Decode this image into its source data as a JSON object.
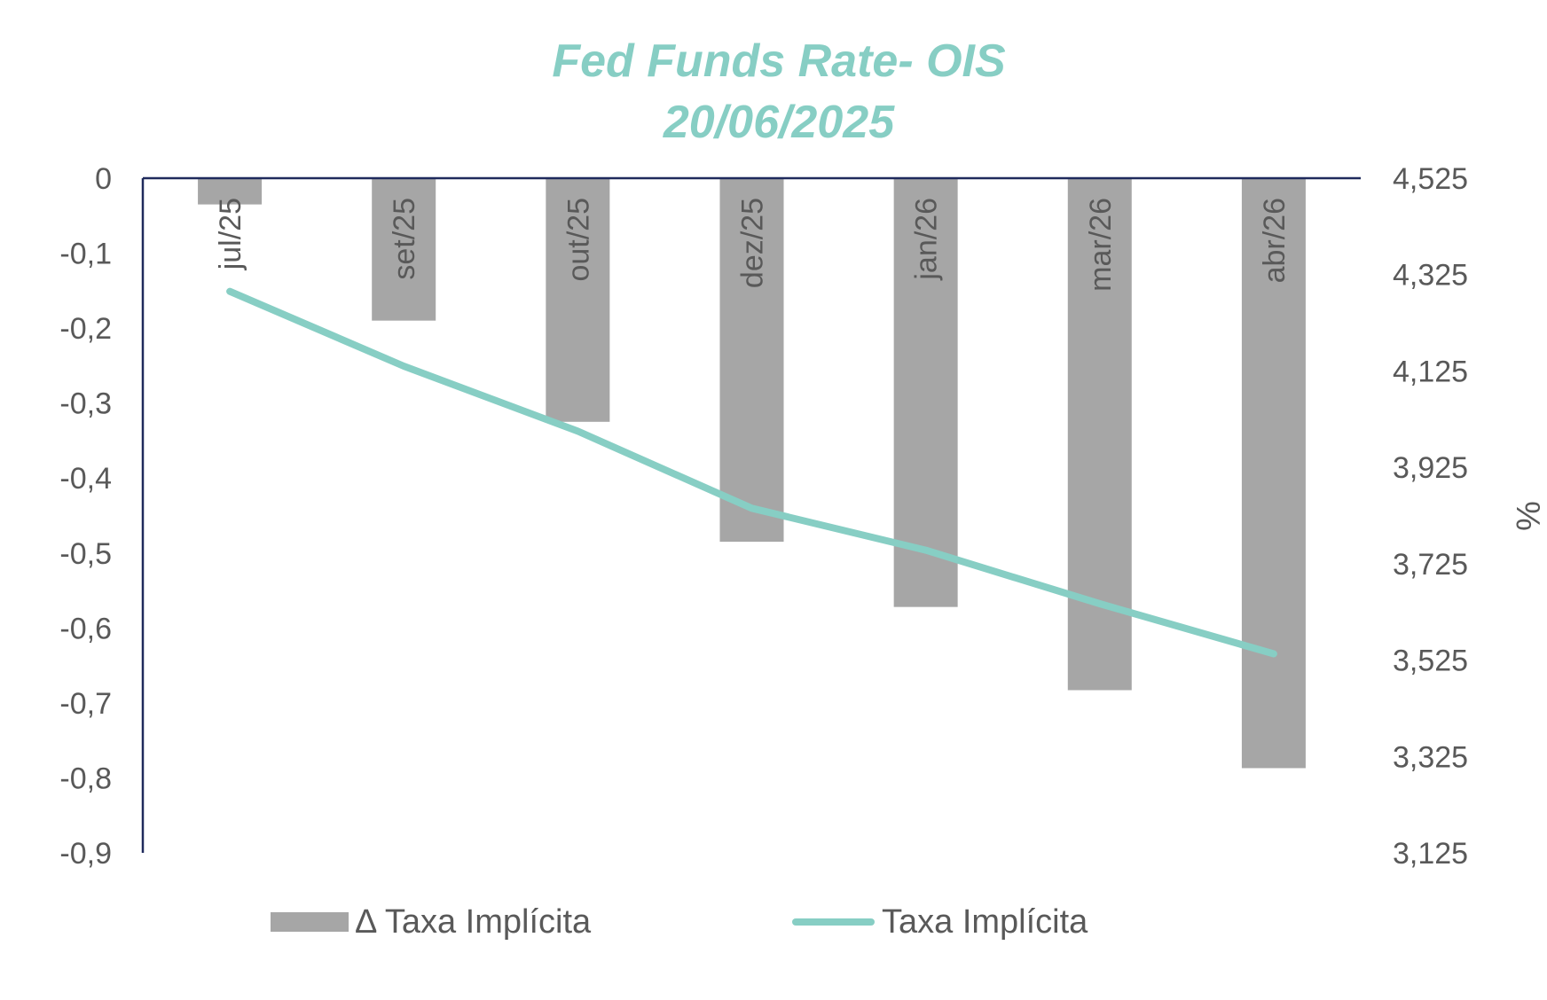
{
  "chart_data": {
    "type": "bar",
    "title": "Fed Funds Rate- OIS",
    "subtitle": "20/06/2025",
    "categories": [
      "jul/25",
      "set/25",
      "out/25",
      "dez/25",
      "jan/26",
      "mar/26",
      "abr/26"
    ],
    "series": [
      {
        "name": "Δ Taxa Implícita",
        "type": "bar",
        "axis": "left",
        "values": [
          -0.035,
          -0.19,
          -0.325,
          -0.485,
          -0.572,
          -0.683,
          -0.787
        ]
      },
      {
        "name": "Taxa Implícita",
        "type": "line",
        "axis": "right",
        "values": [
          4.29,
          4.135,
          4.0,
          3.84,
          3.753,
          3.642,
          3.538
        ]
      }
    ],
    "left_axis": {
      "ylim": [
        -0.9,
        0
      ],
      "ticks": [
        0,
        -0.1,
        -0.2,
        -0.3,
        -0.4,
        -0.5,
        -0.6,
        -0.7,
        -0.8,
        -0.9
      ],
      "tick_labels": [
        "0",
        "-0,1",
        "-0,2",
        "-0,3",
        "-0,4",
        "-0,5",
        "-0,6",
        "-0,7",
        "-0,8",
        "-0,9"
      ]
    },
    "right_axis": {
      "ylabel": "%",
      "ylim": [
        3.125,
        4.525
      ],
      "ticks": [
        4.525,
        4.325,
        4.125,
        3.925,
        3.725,
        3.525,
        3.325,
        3.125
      ],
      "tick_labels": [
        "4,525",
        "4,325",
        "4,125",
        "3,925",
        "3,725",
        "3,525",
        "3,325",
        "3,125"
      ]
    },
    "grid": false,
    "legend_position": "bottom",
    "colors": {
      "bar": "#a6a6a6",
      "line": "#87cec4",
      "title": "#87cec4",
      "axis": "#1f2a5c",
      "text": "#595959"
    }
  }
}
